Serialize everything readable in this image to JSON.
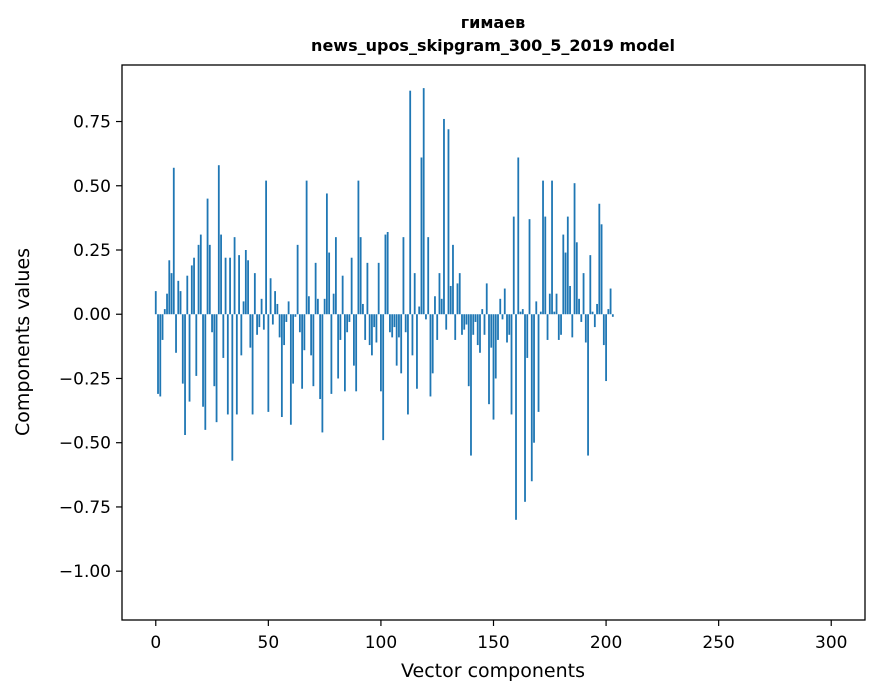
{
  "chart_data": {
    "type": "bar",
    "title_line1": "гимаев",
    "title_line2": "news_upos_skipgram_300_5_2019 model",
    "xlabel": "Vector components",
    "ylabel": "Components values",
    "xlim": [
      -15,
      315
    ],
    "ylim": [
      -1.19,
      0.97
    ],
    "xticks": [
      0,
      50,
      100,
      150,
      200,
      250,
      300
    ],
    "xtick_labels": [
      "0",
      "50",
      "100",
      "150",
      "200",
      "250",
      "300"
    ],
    "yticks": [
      -1.0,
      -0.75,
      -0.5,
      -0.25,
      0.0,
      0.25,
      0.5,
      0.75
    ],
    "ytick_labels": [
      "−1.00",
      "−0.75",
      "−0.50",
      "−0.25",
      "0.00",
      "0.25",
      "0.50",
      "0.75"
    ],
    "bar_color": "#1f77b4",
    "values": [
      0.09,
      -0.31,
      -0.32,
      -0.1,
      0.02,
      0.08,
      0.21,
      0.16,
      0.57,
      -0.15,
      0.13,
      0.09,
      -0.27,
      -0.47,
      0.15,
      -0.34,
      0.19,
      0.22,
      -0.24,
      0.27,
      0.31,
      -0.36,
      -0.45,
      0.45,
      0.27,
      -0.07,
      -0.28,
      -0.42,
      0.58,
      0.31,
      -0.17,
      0.22,
      -0.39,
      0.22,
      -0.57,
      0.3,
      -0.39,
      0.23,
      -0.16,
      0.05,
      0.25,
      0.21,
      -0.13,
      -0.39,
      0.16,
      -0.08,
      -0.05,
      0.06,
      -0.06,
      0.52,
      -0.38,
      0.14,
      -0.04,
      0.09,
      0.04,
      -0.09,
      -0.4,
      -0.12,
      -0.03,
      0.05,
      -0.43,
      -0.27,
      -0.01,
      0.27,
      -0.07,
      -0.29,
      -0.14,
      0.52,
      0.07,
      -0.16,
      -0.28,
      0.2,
      0.06,
      -0.33,
      -0.46,
      0.06,
      0.47,
      0.24,
      -0.31,
      0.08,
      0.3,
      -0.25,
      -0.1,
      0.15,
      -0.3,
      -0.07,
      -0.03,
      0.22,
      -0.2,
      -0.3,
      0.52,
      0.3,
      0.04,
      -0.1,
      0.2,
      -0.12,
      -0.16,
      -0.05,
      -0.11,
      0.2,
      -0.3,
      -0.49,
      0.31,
      0.32,
      -0.07,
      -0.09,
      -0.05,
      -0.2,
      -0.09,
      -0.23,
      0.3,
      -0.07,
      -0.39,
      0.87,
      -0.16,
      0.16,
      -0.29,
      0.03,
      0.61,
      0.88,
      -0.02,
      0.3,
      -0.32,
      -0.23,
      0.07,
      -0.1,
      0.16,
      0.06,
      0.76,
      -0.06,
      0.72,
      0.11,
      0.27,
      -0.1,
      0.12,
      0.16,
      -0.08,
      -0.06,
      -0.04,
      -0.28,
      -0.55,
      -0.08,
      -0.03,
      -0.12,
      -0.15,
      0.02,
      -0.08,
      0.12,
      -0.35,
      -0.13,
      -0.41,
      -0.25,
      -0.1,
      0.06,
      -0.02,
      0.1,
      -0.11,
      -0.08,
      -0.39,
      0.38,
      -0.8,
      0.61,
      0.01,
      0.02,
      -0.73,
      -0.17,
      0.37,
      -0.65,
      -0.5,
      0.05,
      -0.38,
      0.01,
      0.52,
      0.38,
      -0.1,
      0.08,
      0.52,
      0.01,
      0.08,
      -0.1,
      -0.08,
      0.31,
      0.24,
      0.38,
      0.11,
      -0.09,
      0.51,
      0.28,
      0.06,
      -0.03,
      0.16,
      -0.11,
      -0.55,
      0.23,
      0.01,
      -0.05,
      0.04,
      0.43,
      0.35,
      -0.12,
      -0.26,
      0.02,
      0.1,
      -0.01
    ]
  }
}
